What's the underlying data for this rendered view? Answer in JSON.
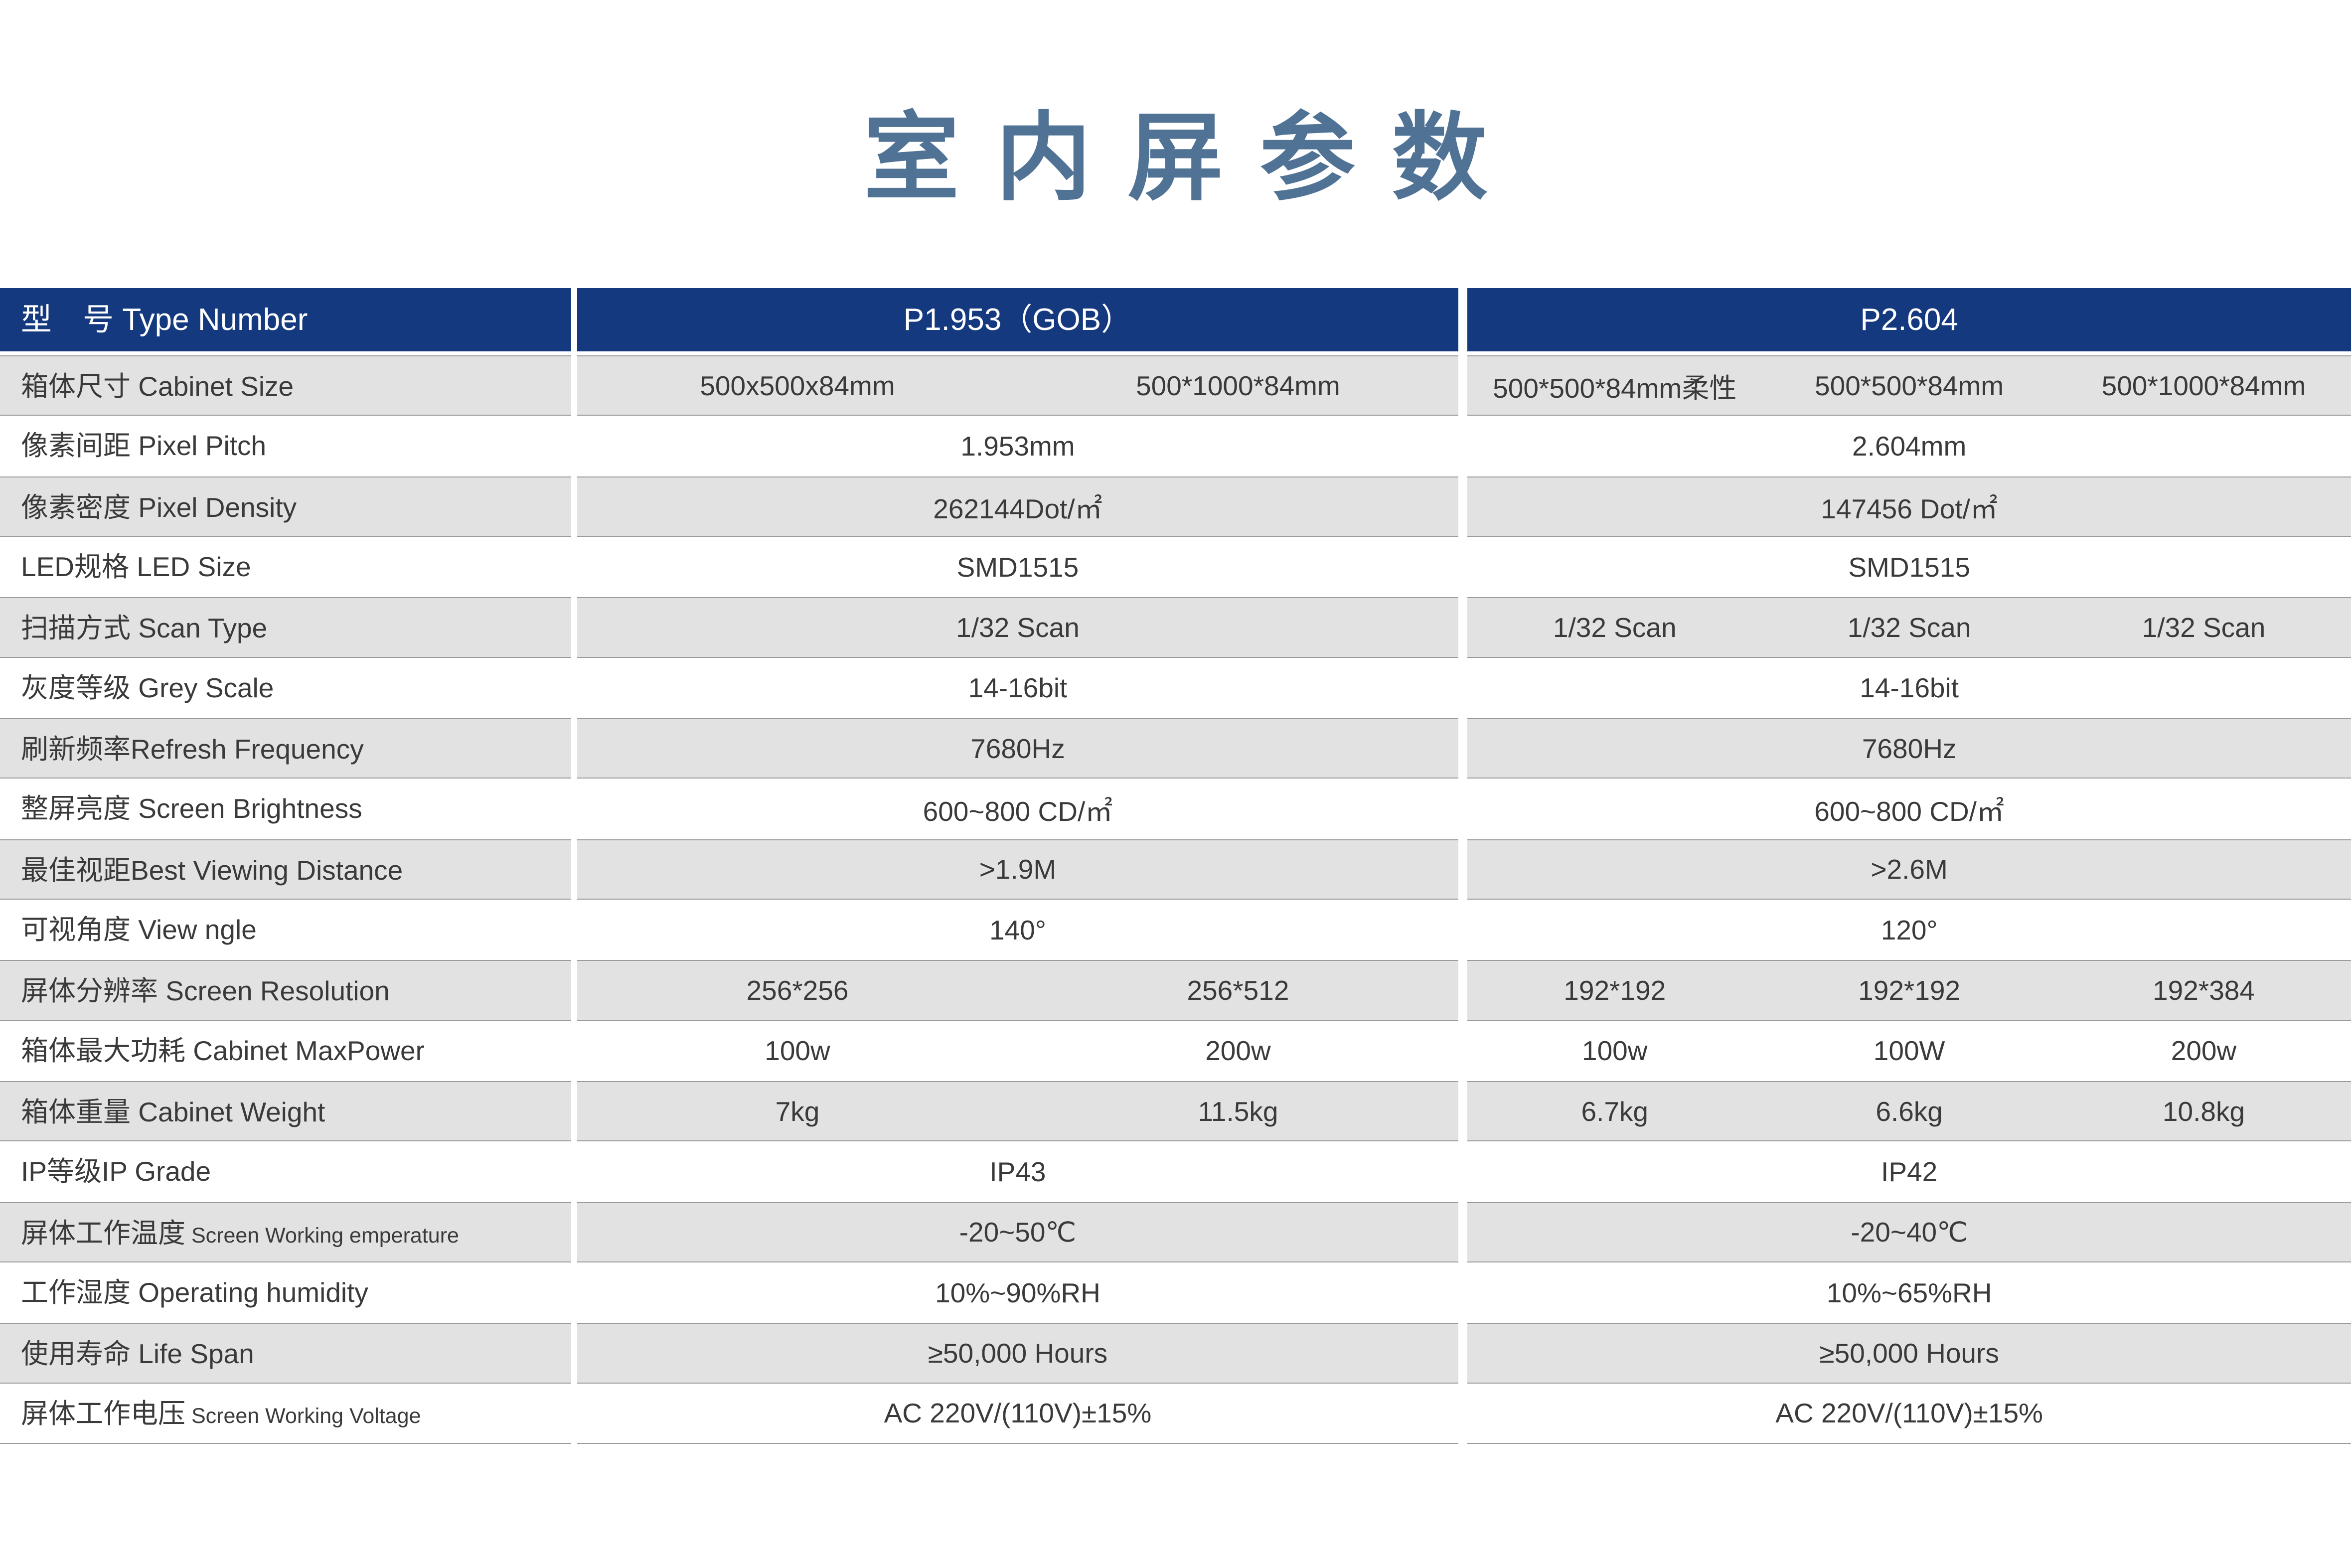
{
  "page": {
    "title": "室内屏参数"
  },
  "colors": {
    "header_bg": "#14397E",
    "title_text": "#4F7295",
    "row_shade": "#E3E2E2",
    "row_border": "#9C9C9C",
    "body_text": "#3A3A3A"
  },
  "table": {
    "header": {
      "label": "型　号 Type Number",
      "col1": "P1.953（GOB）",
      "col2": "P2.604"
    },
    "rows": [
      {
        "zh": "箱体尺寸",
        "en": " Cabinet Size",
        "p1": [
          "500x500x84mm",
          "500*1000*84mm"
        ],
        "p2": [
          "500*500*84mm柔性",
          "500*500*84mm",
          "500*1000*84mm"
        ]
      },
      {
        "zh": "像素间距",
        "en": " Pixel Pitch",
        "p1": [
          "1.953mm"
        ],
        "p2": [
          "2.604mm"
        ]
      },
      {
        "zh": "像素密度",
        "en": " Pixel Density",
        "p1": [
          "262144Dot/㎡"
        ],
        "p2": [
          "147456 Dot/㎡"
        ]
      },
      {
        "zh": "LED规格",
        "en": " LED Size",
        "p1": [
          "SMD1515"
        ],
        "p2": [
          "SMD1515"
        ]
      },
      {
        "zh": "扫描方式",
        "en": " Scan Type",
        "p1": [
          "1/32 Scan"
        ],
        "p2": [
          "1/32 Scan",
          "1/32 Scan",
          "1/32 Scan"
        ]
      },
      {
        "zh": "灰度等级",
        "en": " Grey Scale",
        "p1": [
          "14-16bit"
        ],
        "p2": [
          "14-16bit"
        ]
      },
      {
        "zh": "刷新频率",
        "en": "Refresh Frequency",
        "p1": [
          "7680Hz"
        ],
        "p2": [
          "7680Hz"
        ]
      },
      {
        "zh": "整屏亮度",
        "en": " Screen Brightness",
        "p1": [
          "600~800 CD/㎡"
        ],
        "p2": [
          "600~800 CD/㎡"
        ]
      },
      {
        "zh": "最佳视距",
        "en": "Best Viewing Distance",
        "p1": [
          ">1.9M"
        ],
        "p2": [
          ">2.6M"
        ]
      },
      {
        "zh": "可视角度",
        "en": " View ngle",
        "p1": [
          "140°"
        ],
        "p2": [
          "120°"
        ]
      },
      {
        "zh": "屏体分辨率",
        "en": " Screen Resolution",
        "p1": [
          "256*256",
          "256*512"
        ],
        "p2": [
          "192*192",
          "192*192",
          "192*384"
        ]
      },
      {
        "zh": "箱体最大功耗",
        "en": " Cabinet MaxPower",
        "p1": [
          "100w",
          "200w"
        ],
        "p2": [
          "100w",
          "100W",
          "200w"
        ]
      },
      {
        "zh": "箱体重量",
        "en": " Cabinet Weight",
        "p1": [
          "7kg",
          "11.5kg"
        ],
        "p2": [
          "6.7kg",
          "6.6kg",
          "10.8kg"
        ]
      },
      {
        "zh": "IP等级",
        "en": "IP Grade",
        "p1": [
          "IP43"
        ],
        "p2": [
          "IP42"
        ]
      },
      {
        "zh": "屏体工作温度",
        "en": " Screen Working emperature",
        "p1": [
          "-20~50℃"
        ],
        "p2": [
          "-20~40℃"
        ]
      },
      {
        "zh": "工作湿度",
        "en": " Operating humidity",
        "p1": [
          "10%~90%RH"
        ],
        "p2": [
          "10%~65%RH"
        ]
      },
      {
        "zh": "使用寿命",
        "en": " Life Span",
        "p1": [
          "≥50,000 Hours"
        ],
        "p2": [
          "≥50,000 Hours"
        ]
      },
      {
        "zh": "屏体工作电压",
        "en": " Screen Working Voltage",
        "p1": [
          "AC 220V/(110V)±15%"
        ],
        "p2": [
          "AC 220V/(110V)±15%"
        ]
      }
    ]
  }
}
